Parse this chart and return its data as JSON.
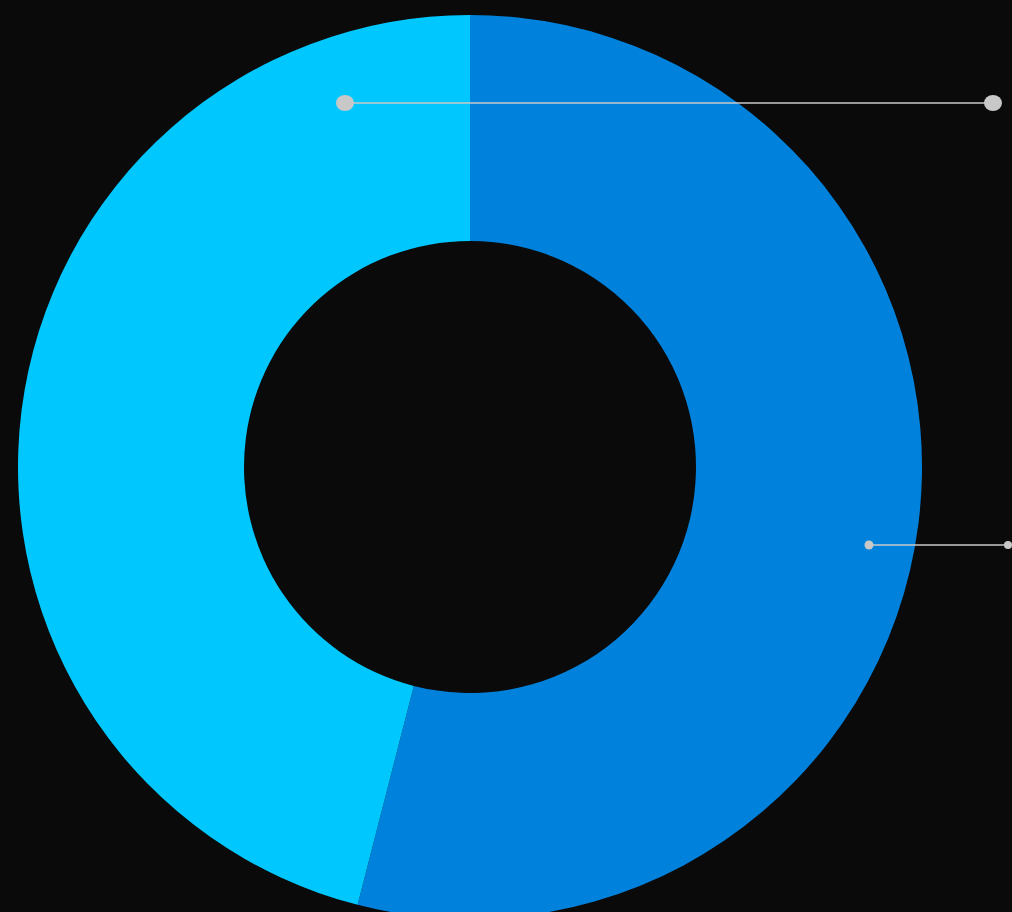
{
  "chart_data": {
    "type": "donut",
    "categories": [
      null,
      null
    ],
    "values": [
      54,
      46
    ],
    "colors": [
      "#0082dc",
      "#00c8ff"
    ]
  }
}
